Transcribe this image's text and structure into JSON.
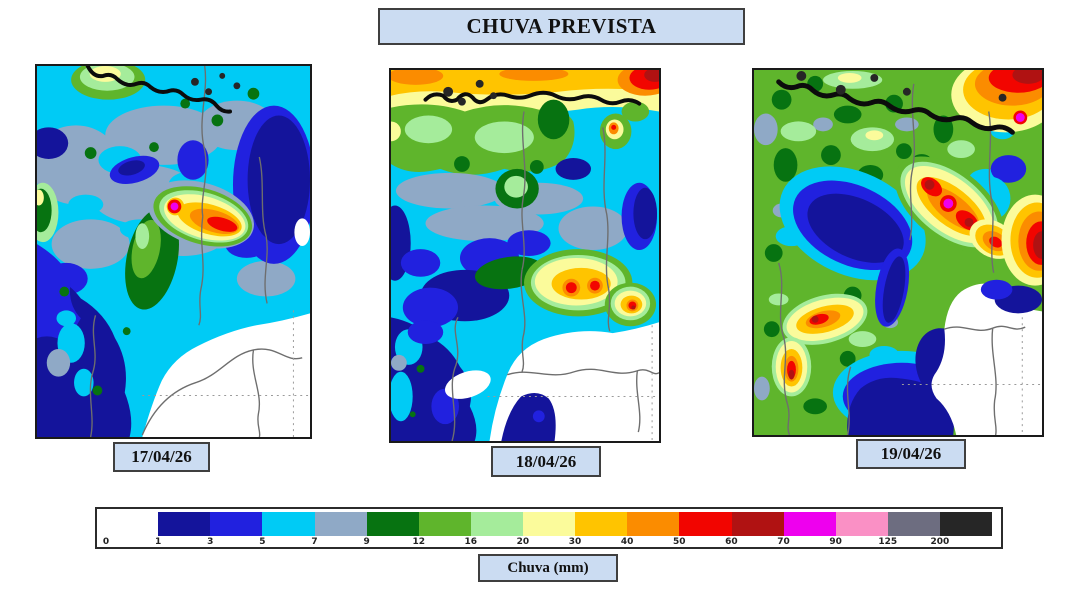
{
  "title": {
    "text": "CHUVA PREVISTA"
  },
  "panels": [
    {
      "date": "17/04/26"
    },
    {
      "date": "18/04/26"
    },
    {
      "date": "19/04/26"
    }
  ],
  "colorbar": {
    "label": "Chuva (mm)",
    "ticks": [
      "0",
      "1",
      "3",
      "5",
      "7",
      "9",
      "12",
      "16",
      "20",
      "30",
      "40",
      "50",
      "60",
      "70",
      "90",
      "125",
      "200"
    ],
    "colors": [
      "#FFFFFF",
      "#14149B",
      "#2121DF",
      "#00CBF5",
      "#8FA9C6",
      "#077311",
      "#5FB52C",
      "#A5EC9B",
      "#FBFB9B",
      "#FFC400",
      "#FB8C00",
      "#F20500",
      "#B01212",
      "#EE00EE",
      "#FA90C5",
      "#6D6D80",
      "#262626"
    ],
    "names": [
      "white",
      "navy",
      "blue",
      "cyan",
      "gblue",
      "dgreen",
      "green",
      "lgreen",
      "lyellow",
      "gold",
      "orange",
      "red",
      "dred",
      "magenta",
      "pink",
      "slate",
      "black"
    ]
  },
  "style_colors": {
    "label_box_fill": "#CBDCF2",
    "label_box_border": "#3F3F3F"
  }
}
